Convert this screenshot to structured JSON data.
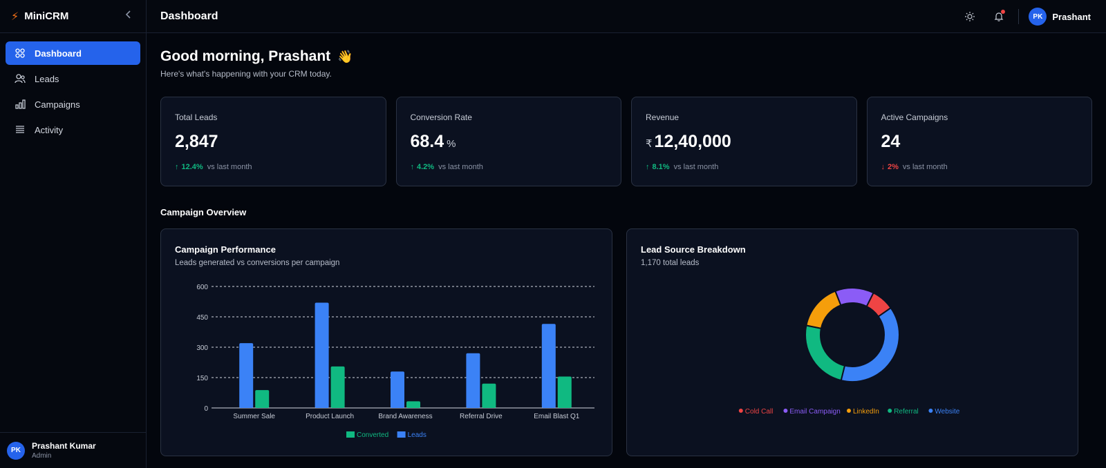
{
  "sidebar": {
    "brand": "MiniCRM",
    "items": [
      {
        "label": "Dashboard",
        "icon": "grid-icon"
      },
      {
        "label": "Leads",
        "icon": "users-icon"
      },
      {
        "label": "Campaigns",
        "icon": "bar-chart-icon"
      },
      {
        "label": "Activity",
        "icon": "list-icon"
      }
    ],
    "user": {
      "initials": "PK",
      "name": "Prashant Kumar",
      "role": "Admin"
    }
  },
  "topbar": {
    "title": "Dashboard",
    "user": {
      "initials": "PK",
      "name": "Prashant"
    }
  },
  "greeting": {
    "title": "Good morning, Prashant",
    "emoji": "👋",
    "subtitle": "Here's what's happening with your CRM today."
  },
  "stats": [
    {
      "label": "Total Leads",
      "value": "2,847",
      "change": "12.4%",
      "trend": "up",
      "note": "vs last month"
    },
    {
      "label": "Conversion Rate",
      "value": "68.4",
      "unit": "%",
      "change": "4.2%",
      "trend": "up",
      "note": "vs last month"
    },
    {
      "label": "Revenue",
      "prefix": "₹",
      "value": "12,40,000",
      "change": "8.1%",
      "trend": "up",
      "note": "vs last month"
    },
    {
      "label": "Active Campaigns",
      "value": "24",
      "change": "2%",
      "trend": "down",
      "note": "vs last month"
    }
  ],
  "section_title": "Campaign Overview",
  "perf_card": {
    "title": "Campaign Performance",
    "subtitle": "Leads generated vs conversions per campaign"
  },
  "source_card": {
    "title": "Lead Source Breakdown",
    "subtitle": "1,170 total leads"
  },
  "colors": {
    "accent": "#2563eb",
    "leads": "#3b82f6",
    "converted": "#10b981",
    "cold_call": "#ef4444",
    "email_campaign": "#8b5cf6",
    "linkedin": "#f59e0b",
    "referral": "#10b981",
    "website": "#3b82f6"
  },
  "chart_data": [
    {
      "type": "bar",
      "categories": [
        "Summer Sale",
        "Product Launch",
        "Brand Awareness",
        "Referral Drive",
        "Email Blast Q1"
      ],
      "series": [
        {
          "name": "Leads",
          "values": [
            320,
            520,
            180,
            270,
            415
          ]
        },
        {
          "name": "Converted",
          "values": [
            88,
            205,
            33,
            120,
            155
          ]
        }
      ],
      "yticks": [
        0,
        150,
        300,
        450,
        600
      ],
      "ylim": [
        0,
        600
      ],
      "grid": true,
      "legend": [
        "Converted",
        "Leads"
      ],
      "legend_position": "bottom"
    },
    {
      "type": "pie",
      "donut": true,
      "labels": [
        "Cold Call",
        "Email Campaign",
        "LinkedIn",
        "Referral",
        "Website"
      ],
      "values": [
        92,
        156,
        186,
        285,
        451
      ],
      "legend_position": "bottom"
    }
  ]
}
